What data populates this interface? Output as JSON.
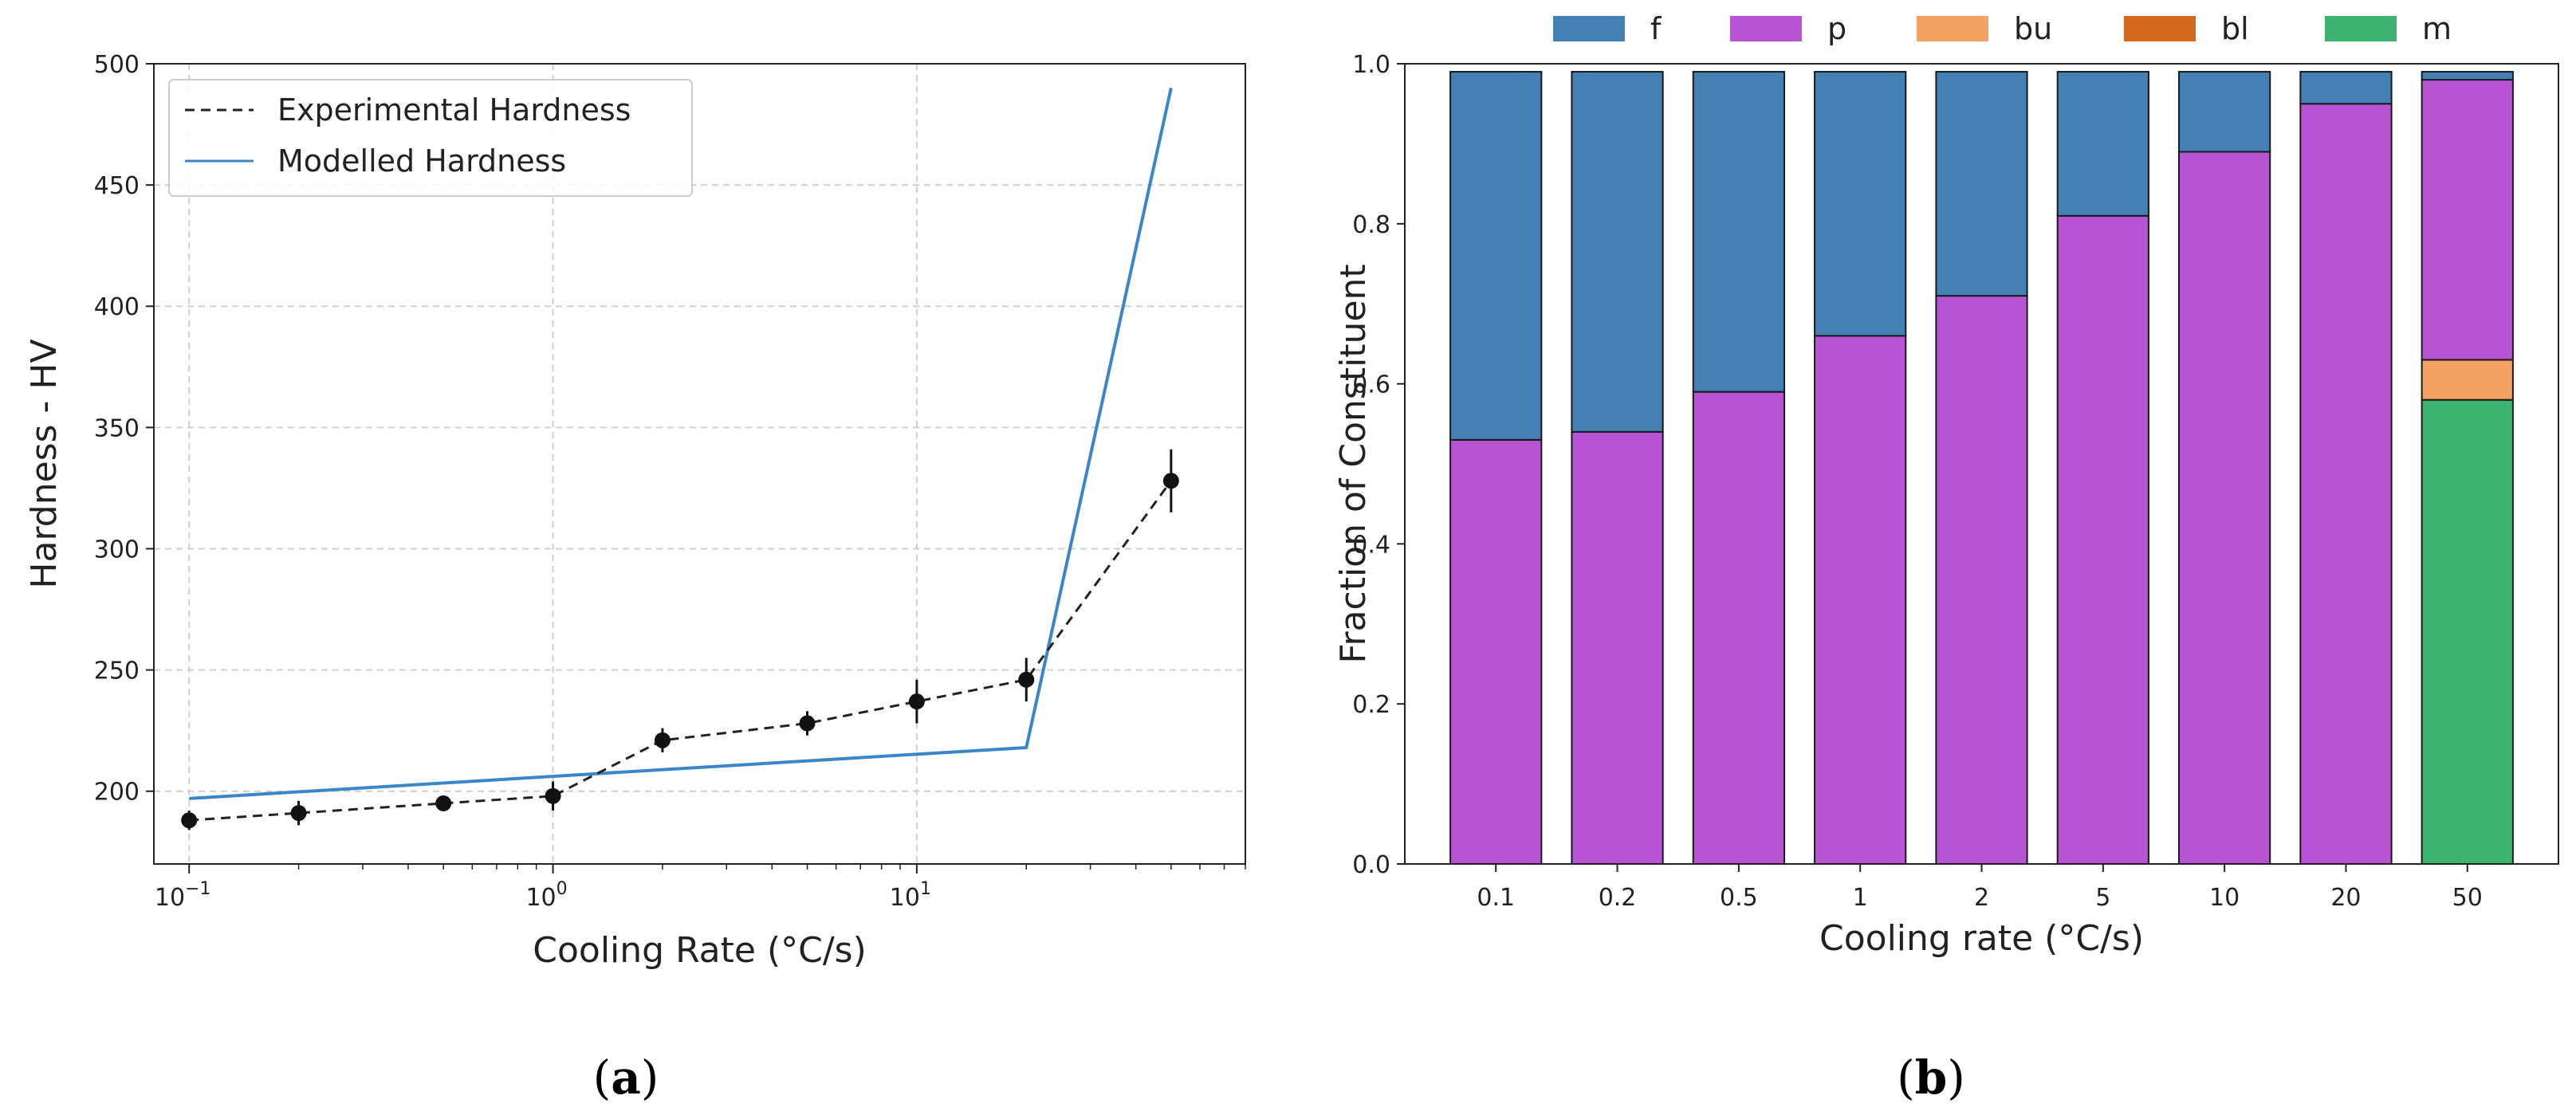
{
  "chart_data": [
    {
      "type": "line",
      "panel_label": "a",
      "xscale": "log",
      "xlabel": "Cooling Rate (°C/s)",
      "ylabel": "Hardness - HV",
      "xlim": [
        0.08,
        80
      ],
      "ylim": [
        170,
        500
      ],
      "grid": true,
      "legend_position": "top-left",
      "x_ticks": [
        {
          "value": 0.1,
          "base": "10",
          "exp": "−1"
        },
        {
          "value": 1,
          "base": "10",
          "exp": "0"
        },
        {
          "value": 10,
          "base": "10",
          "exp": "1"
        }
      ],
      "y_ticks": [
        200,
        250,
        300,
        350,
        400,
        450,
        500
      ],
      "series": [
        {
          "name": "Experimental Hardness",
          "style": "dashed",
          "color": "#222222",
          "markers": true,
          "x": [
            0.1,
            0.2,
            0.5,
            1,
            2,
            5,
            10,
            20,
            50
          ],
          "y": [
            188,
            191,
            195,
            198,
            221,
            228,
            237,
            246,
            328
          ],
          "yerr": [
            4,
            5,
            3,
            6,
            5,
            5,
            9,
            9,
            13
          ]
        },
        {
          "name": "Modelled Hardness",
          "style": "solid",
          "color": "#3a86c8",
          "markers": false,
          "x": [
            0.1,
            20,
            50
          ],
          "y": [
            197,
            218,
            490
          ]
        }
      ]
    },
    {
      "type": "bar",
      "stacked": true,
      "panel_label": "b",
      "xlabel": "Cooling rate (°C/s)",
      "ylabel": "Fraction of Constituent",
      "ylim": [
        0,
        1.0
      ],
      "y_ticks": [
        "0.0",
        "0.2",
        "0.4",
        "0.6",
        "0.8",
        "1.0"
      ],
      "legend_position": "top",
      "categories": [
        "0.1",
        "0.2",
        "0.5",
        "1",
        "2",
        "5",
        "10",
        "20",
        "50"
      ],
      "series": [
        {
          "name": "f",
          "color": "#4580b4",
          "values": [
            0.46,
            0.45,
            0.4,
            0.33,
            0.28,
            0.18,
            0.1,
            0.04,
            0.01
          ]
        },
        {
          "name": "p",
          "color": "#b854d4",
          "values": [
            0.53,
            0.54,
            0.59,
            0.66,
            0.71,
            0.81,
            0.89,
            0.95,
            0.35
          ]
        },
        {
          "name": "bu",
          "color": "#f4a261",
          "values": [
            0,
            0,
            0,
            0,
            0,
            0,
            0,
            0,
            0.05
          ]
        },
        {
          "name": "bl",
          "color": "#d2691e",
          "values": [
            0,
            0,
            0,
            0,
            0,
            0,
            0,
            0,
            0
          ]
        },
        {
          "name": "m",
          "color": "#3cb371",
          "values": [
            0,
            0,
            0,
            0,
            0,
            0,
            0,
            0,
            0.58
          ]
        }
      ],
      "stack_order": [
        "m",
        "bl",
        "bu",
        "p",
        "f"
      ]
    }
  ]
}
